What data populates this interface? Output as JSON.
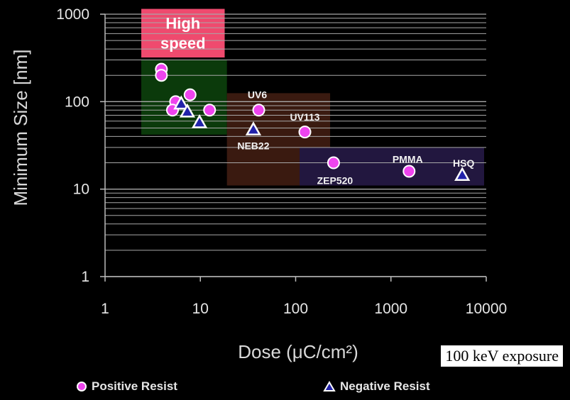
{
  "note": "100 keV exposure",
  "legend": {
    "positive": "Positive Resist",
    "negative": "Negative Resist"
  },
  "chart_data": {
    "type": "scatter",
    "xlabel": "Dose (μC/cm²)",
    "ylabel": "Minimum Size [nm]",
    "x_scale": "log",
    "y_scale": "log",
    "xlim": [
      1,
      10000
    ],
    "ylim": [
      1,
      1000
    ],
    "x_ticks": [
      "1",
      "10",
      "100",
      "1000",
      "10000"
    ],
    "y_ticks": [
      "1",
      "10",
      "100",
      "1000"
    ],
    "grid": "horizontal",
    "regions": [
      {
        "label": "High speed",
        "x": [
          2.4,
          18
        ],
        "y": [
          320,
          1150
        ],
        "color": "#ef4a6e"
      },
      {
        "label": "",
        "x": [
          2.4,
          19
        ],
        "y": [
          42,
          300
        ],
        "color": "#0b3a0b"
      },
      {
        "label": "",
        "x": [
          19,
          230
        ],
        "y": [
          11,
          125
        ],
        "color": "#3a1a10"
      },
      {
        "label": "",
        "x": [
          110,
          9500
        ],
        "y": [
          11,
          30
        ],
        "color": "#22173f"
      }
    ],
    "series": [
      {
        "name": "Positive Resist",
        "color": "#ee44ee",
        "points": [
          {
            "x": 3.9,
            "y": 235,
            "label": ""
          },
          {
            "x": 3.9,
            "y": 200,
            "label": ""
          },
          {
            "x": 5.5,
            "y": 100,
            "label": ""
          },
          {
            "x": 5.1,
            "y": 80,
            "label": ""
          },
          {
            "x": 7.8,
            "y": 120,
            "label": ""
          },
          {
            "x": 12.5,
            "y": 80,
            "label": ""
          },
          {
            "x": 41,
            "y": 80,
            "label": "UV6"
          },
          {
            "x": 125,
            "y": 45,
            "label": "UV113"
          },
          {
            "x": 250,
            "y": 20,
            "label": "ZEP520"
          },
          {
            "x": 1550,
            "y": 16,
            "label": "PMMA"
          }
        ]
      },
      {
        "name": "Negative Resist",
        "color": "#2222aa",
        "points": [
          {
            "x": 6.3,
            "y": 95,
            "label": ""
          },
          {
            "x": 7.3,
            "y": 77,
            "label": ""
          },
          {
            "x": 9.8,
            "y": 58,
            "label": ""
          },
          {
            "x": 36,
            "y": 48,
            "label": "NEB22"
          },
          {
            "x": 5600,
            "y": 14.5,
            "label": "HSQ"
          }
        ]
      }
    ]
  }
}
